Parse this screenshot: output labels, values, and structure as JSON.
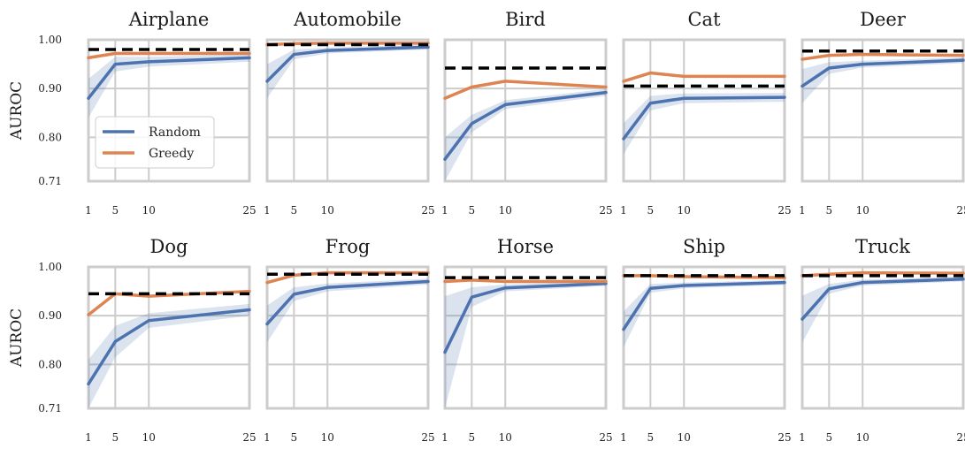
{
  "chart_data": {
    "type": "line",
    "ylabel": "AUROC",
    "y_ticks": [
      "1.00",
      "0.90",
      "0.80",
      "0.71"
    ],
    "y_tick_values": [
      1.0,
      0.9,
      0.8,
      0.71
    ],
    "ylim": [
      0.71,
      1.0
    ],
    "x_ticks": [
      1,
      5,
      10,
      25
    ],
    "xlim": [
      1,
      25
    ],
    "grid": true,
    "legend": {
      "placement": "lower-left",
      "panel": "Airplane",
      "entries": [
        "Random",
        "Greedy"
      ]
    },
    "colors": {
      "Random": "#4c72b0",
      "Greedy": "#dd8452",
      "baseline": "#000000",
      "grid": "#cccccc"
    },
    "panels": [
      {
        "title": "Airplane",
        "series": [
          {
            "name": "Random",
            "x": [
              1,
              5,
              10,
              25
            ],
            "values": [
              0.88,
              0.95,
              0.955,
              0.963
            ],
            "band_low": [
              0.84,
              0.935,
              0.945,
              0.955
            ],
            "band_high": [
              0.92,
              0.965,
              0.965,
              0.97
            ]
          },
          {
            "name": "Greedy",
            "x": [
              1,
              5,
              10,
              25
            ],
            "values": [
              0.963,
              0.972,
              0.972,
              0.972
            ]
          }
        ],
        "baseline": 0.98
      },
      {
        "title": "Automobile",
        "series": [
          {
            "name": "Random",
            "x": [
              1,
              5,
              10,
              25
            ],
            "values": [
              0.915,
              0.97,
              0.978,
              0.985
            ],
            "band_low": [
              0.88,
              0.96,
              0.972,
              0.98
            ],
            "band_high": [
              0.95,
              0.98,
              0.984,
              0.99
            ]
          },
          {
            "name": "Greedy",
            "x": [
              1,
              5,
              10,
              25
            ],
            "values": [
              0.99,
              0.992,
              0.993,
              0.993
            ]
          }
        ],
        "baseline": 0.99
      },
      {
        "title": "Bird",
        "series": [
          {
            "name": "Random",
            "x": [
              1,
              5,
              10,
              25
            ],
            "values": [
              0.755,
              0.828,
              0.867,
              0.892
            ],
            "band_low": [
              0.71,
              0.81,
              0.858,
              0.885
            ],
            "band_high": [
              0.8,
              0.846,
              0.876,
              0.899
            ]
          },
          {
            "name": "Greedy",
            "x": [
              1,
              5,
              10,
              25
            ],
            "values": [
              0.88,
              0.903,
              0.915,
              0.903
            ]
          }
        ],
        "baseline": 0.942
      },
      {
        "title": "Cat",
        "series": [
          {
            "name": "Random",
            "x": [
              1,
              5,
              10,
              25
            ],
            "values": [
              0.797,
              0.87,
              0.88,
              0.882
            ],
            "band_low": [
              0.765,
              0.855,
              0.87,
              0.873
            ],
            "band_high": [
              0.829,
              0.885,
              0.89,
              0.891
            ]
          },
          {
            "name": "Greedy",
            "x": [
              1,
              5,
              10,
              25
            ],
            "values": [
              0.915,
              0.932,
              0.925,
              0.925
            ]
          }
        ],
        "baseline": 0.905
      },
      {
        "title": "Deer",
        "series": [
          {
            "name": "Random",
            "x": [
              1,
              5,
              10,
              25
            ],
            "values": [
              0.905,
              0.942,
              0.95,
              0.958
            ],
            "band_low": [
              0.87,
              0.93,
              0.943,
              0.952
            ],
            "band_high": [
              0.94,
              0.954,
              0.957,
              0.964
            ]
          },
          {
            "name": "Greedy",
            "x": [
              1,
              5,
              10,
              25
            ],
            "values": [
              0.96,
              0.968,
              0.97,
              0.968
            ]
          }
        ],
        "baseline": 0.977
      },
      {
        "title": "Dog",
        "series": [
          {
            "name": "Random",
            "x": [
              1,
              5,
              10,
              25
            ],
            "values": [
              0.76,
              0.847,
              0.89,
              0.912
            ],
            "band_low": [
              0.71,
              0.815,
              0.875,
              0.9
            ],
            "band_high": [
              0.81,
              0.879,
              0.905,
              0.924
            ]
          },
          {
            "name": "Greedy",
            "x": [
              1,
              5,
              10,
              25
            ],
            "values": [
              0.902,
              0.945,
              0.94,
              0.95
            ]
          }
        ],
        "baseline": 0.945
      },
      {
        "title": "Frog",
        "series": [
          {
            "name": "Random",
            "x": [
              1,
              5,
              10,
              25
            ],
            "values": [
              0.883,
              0.944,
              0.958,
              0.97
            ],
            "band_low": [
              0.845,
              0.93,
              0.95,
              0.964
            ],
            "band_high": [
              0.921,
              0.958,
              0.966,
              0.976
            ]
          },
          {
            "name": "Greedy",
            "x": [
              1,
              5,
              10,
              25
            ],
            "values": [
              0.968,
              0.983,
              0.988,
              0.988
            ]
          }
        ],
        "baseline": 0.985
      },
      {
        "title": "Horse",
        "series": [
          {
            "name": "Random",
            "x": [
              1,
              5,
              10,
              25
            ],
            "values": [
              0.825,
              0.938,
              0.957,
              0.966
            ],
            "band_low": [
              0.71,
              0.918,
              0.95,
              0.961
            ],
            "band_high": [
              0.94,
              0.958,
              0.964,
              0.971
            ]
          },
          {
            "name": "Greedy",
            "x": [
              1,
              5,
              10,
              25
            ],
            "values": [
              0.97,
              0.973,
              0.97,
              0.97
            ]
          }
        ],
        "baseline": 0.978
      },
      {
        "title": "Ship",
        "series": [
          {
            "name": "Random",
            "x": [
              1,
              5,
              10,
              25
            ],
            "values": [
              0.872,
              0.956,
              0.962,
              0.968
            ],
            "band_low": [
              0.835,
              0.947,
              0.956,
              0.963
            ],
            "band_high": [
              0.909,
              0.965,
              0.968,
              0.973
            ]
          },
          {
            "name": "Greedy",
            "x": [
              1,
              5,
              10,
              25
            ],
            "values": [
              0.982,
              0.982,
              0.98,
              0.978
            ]
          }
        ],
        "baseline": 0.982
      },
      {
        "title": "Truck",
        "series": [
          {
            "name": "Random",
            "x": [
              1,
              5,
              10,
              25
            ],
            "values": [
              0.893,
              0.955,
              0.968,
              0.975
            ],
            "band_low": [
              0.845,
              0.945,
              0.962,
              0.97
            ],
            "band_high": [
              0.941,
              0.965,
              0.974,
              0.98
            ]
          },
          {
            "name": "Greedy",
            "x": [
              1,
              5,
              10,
              25
            ],
            "values": [
              0.982,
              0.985,
              0.988,
              0.987
            ]
          }
        ],
        "baseline": 0.982
      }
    ]
  }
}
